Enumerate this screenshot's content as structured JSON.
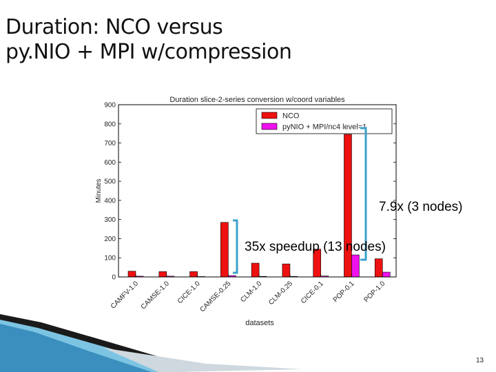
{
  "slide": {
    "title_line1": "Duration: NCO versus",
    "title_line2": "py.NIO + MPI w/compression",
    "page_number": "13"
  },
  "annotations": {
    "speedup_a": "7.9x (3 nodes)",
    "speedup_b": "35x speedup (13 nodes)",
    "bracket_color": "#3aa0c8"
  },
  "chart_data": {
    "type": "bar",
    "title": "Duration slice-2-series conversion w/coord variables",
    "xlabel": "datasets",
    "ylabel": "Minutes",
    "ylim": [
      0,
      900
    ],
    "yticks": [
      0,
      100,
      200,
      300,
      400,
      500,
      600,
      700,
      800,
      900
    ],
    "categories": [
      "CAMFV-1.0",
      "CAMSE-1.0",
      "CICE-1.0",
      "CAMSE-0.25",
      "CLM-1.0",
      "CLM-0.25",
      "CICE-0.1",
      "POP-0.1",
      "POP-1.0"
    ],
    "series": [
      {
        "name": "NCO",
        "color": "#ee1111",
        "values": [
          30,
          28,
          28,
          285,
          72,
          68,
          145,
          745,
          95
        ]
      },
      {
        "name": "pyNIO + MPI/nc4 level=1",
        "color": "#ee11ee",
        "values": [
          4,
          4,
          2,
          7,
          3,
          3,
          5,
          115,
          25
        ]
      }
    ],
    "legend": "top-right",
    "grid": false
  }
}
